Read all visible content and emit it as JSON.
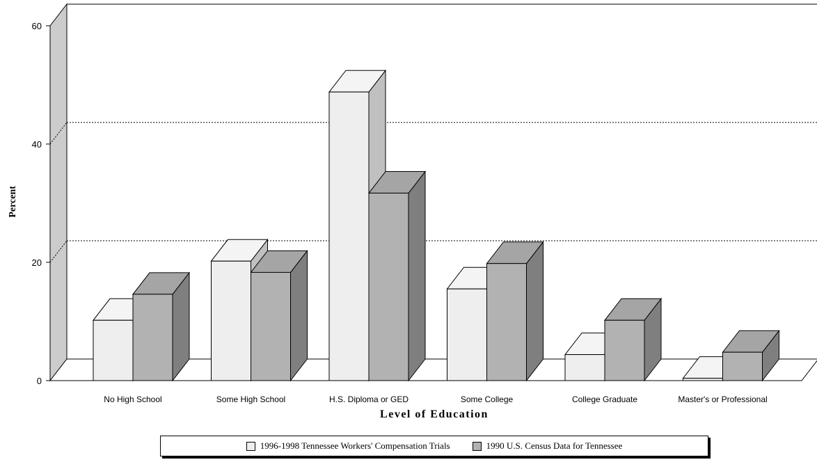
{
  "chart_data": {
    "type": "bar",
    "title": "",
    "xlabel": "Level of Education",
    "ylabel": "Percent",
    "ylim": [
      0,
      60
    ],
    "yticks": [
      0,
      20,
      40,
      60
    ],
    "grid": true,
    "legend_position": "bottom",
    "categories": [
      "No High School",
      "Some High School",
      "H.S. Diploma or GED",
      "Some College",
      "College Graduate",
      "Master's or Professional"
    ],
    "series": [
      {
        "name": "1996-1998 Tennessee Workers' Compensation Trials",
        "color": "#eeeeee",
        "values": [
          10.2,
          20.2,
          48.8,
          15.5,
          4.4,
          0.4
        ]
      },
      {
        "name": "1990 U.S. Census Data for Tennessee",
        "color": "#b2b2b2",
        "values": [
          14.6,
          18.3,
          31.7,
          19.8,
          10.2,
          4.8
        ]
      }
    ]
  }
}
